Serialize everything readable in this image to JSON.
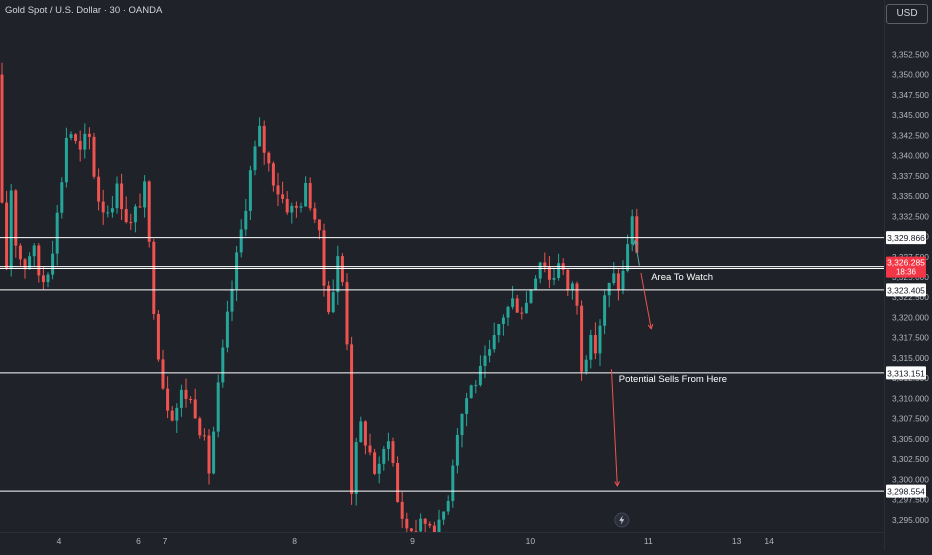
{
  "header": {
    "symbol_title": "Gold Spot / U.S. Dollar · 30 · OANDA",
    "currency_button": "USD"
  },
  "colors": {
    "background": "#1f2229",
    "up": "#26a69a",
    "down": "#ef5350",
    "level_line": "#ffffff",
    "annotation": "#ffffff",
    "arrow_red": "#ef5350",
    "arrow_teal": "#5fa8a0",
    "axis_text": "#b2b5be",
    "grid": "#2a2e39"
  },
  "chart_data": {
    "type": "candlestick",
    "title": "Gold Spot / U.S. Dollar · 30 · OANDA",
    "currency": "USD",
    "ylim": [
      3293.5,
      3356.5
    ],
    "y_ticks": [
      "3,295.000",
      "3,297.500",
      "3,300.000",
      "3,302.500",
      "3,305.000",
      "3,307.500",
      "3,310.000",
      "3,312.500",
      "3,315.000",
      "3,317.500",
      "3,320.000",
      "3,322.500",
      "3,325.000",
      "3,327.500",
      "3,330.000",
      "3,332.500",
      "3,335.000",
      "3,337.500",
      "3,340.000",
      "3,342.500",
      "3,345.000",
      "3,347.500",
      "3,350.000",
      "3,352.500"
    ],
    "x_ticks": [
      {
        "label": "4",
        "slot": 2.0
      },
      {
        "label": "6",
        "slot": 4.7
      },
      {
        "label": "7",
        "slot": 5.6
      },
      {
        "label": "8",
        "slot": 10.0
      },
      {
        "label": "9",
        "slot": 14.0
      },
      {
        "label": "10",
        "slot": 18.0
      },
      {
        "label": "11",
        "slot": 22.0
      },
      {
        "label": "13",
        "slot": 25.0
      },
      {
        "label": "14",
        "slot": 26.1
      }
    ],
    "x_slots": 30,
    "current_price": {
      "label": "3,326.285",
      "countdown": "18:36",
      "value": 3326.285
    },
    "horizontal_levels": [
      {
        "value": 3329.866,
        "label": "3,329.866"
      },
      {
        "value": 3326.057,
        "label": "3,326.057"
      },
      {
        "value": 3323.405,
        "label": "3,323.405"
      },
      {
        "value": 3313.151,
        "label": "3,313.151"
      },
      {
        "value": 3298.554,
        "label": "3,298.554"
      }
    ],
    "annotations": [
      {
        "text": "Area To Watch",
        "slot": 22.1,
        "price": 3324.6
      },
      {
        "text": "Potential Sells From Here",
        "slot": 21.0,
        "price": 3312.0
      }
    ],
    "arrows": [
      {
        "from_slot": 21.75,
        "from_price": 3325.5,
        "to_slot": 22.1,
        "to_price": 3318.6,
        "color": "arrow_red"
      },
      {
        "from_slot": 20.75,
        "from_price": 3313.6,
        "to_slot": 20.95,
        "to_price": 3299.2,
        "color": "arrow_red"
      },
      {
        "from_slot": 21.7,
        "from_price": 3326.4,
        "to_slot": 21.55,
        "to_price": 3329.5,
        "color": "arrow_teal"
      }
    ],
    "path": [
      [
        0.0,
        3350
      ],
      [
        0.15,
        3313
      ],
      [
        0.3,
        3340
      ],
      [
        0.5,
        3330
      ],
      [
        0.8,
        3326
      ],
      [
        1.1,
        3329
      ],
      [
        1.4,
        3324
      ],
      [
        1.7,
        3327
      ],
      [
        2.0,
        3334
      ],
      [
        2.3,
        3344
      ],
      [
        2.7,
        3340
      ],
      [
        3.0,
        3343
      ],
      [
        3.3,
        3335
      ],
      [
        3.6,
        3333
      ],
      [
        4.0,
        3336
      ],
      [
        4.4,
        3331
      ],
      [
        4.9,
        3336
      ],
      [
        5.1,
        3327
      ],
      [
        5.3,
        3318
      ],
      [
        5.6,
        3310
      ],
      [
        5.9,
        3308
      ],
      [
        6.2,
        3311
      ],
      [
        6.6,
        3309
      ],
      [
        6.9,
        3305
      ],
      [
        7.1,
        3301
      ],
      [
        7.4,
        3311
      ],
      [
        7.8,
        3322
      ],
      [
        8.2,
        3331
      ],
      [
        8.5,
        3338
      ],
      [
        8.8,
        3343
      ],
      [
        9.1,
        3339
      ],
      [
        9.4,
        3336
      ],
      [
        9.7,
        3334
      ],
      [
        10.0,
        3333
      ],
      [
        10.4,
        3336
      ],
      [
        10.8,
        3331
      ],
      [
        11.0,
        3324
      ],
      [
        11.2,
        3321
      ],
      [
        11.5,
        3328
      ],
      [
        11.7,
        3322
      ],
      [
        11.8,
        3316
      ],
      [
        11.9,
        3298
      ],
      [
        12.2,
        3307
      ],
      [
        12.5,
        3304
      ],
      [
        12.8,
        3300
      ],
      [
        13.2,
        3306
      ],
      [
        13.5,
        3297
      ],
      [
        13.8,
        3294
      ],
      [
        14.2,
        3294
      ],
      [
        14.5,
        3295
      ],
      [
        14.9,
        3294
      ],
      [
        15.2,
        3298
      ],
      [
        15.5,
        3306
      ],
      [
        15.9,
        3311
      ],
      [
        16.3,
        3313
      ],
      [
        16.7,
        3316
      ],
      [
        17.0,
        3320
      ],
      [
        17.4,
        3322
      ],
      [
        17.8,
        3321
      ],
      [
        18.1,
        3325
      ],
      [
        18.4,
        3328
      ],
      [
        18.7,
        3324
      ],
      [
        19.0,
        3328
      ],
      [
        19.3,
        3322
      ],
      [
        19.5,
        3326
      ],
      [
        19.7,
        3314
      ],
      [
        20.0,
        3317
      ],
      [
        20.2,
        3316
      ],
      [
        20.5,
        3322
      ],
      [
        20.8,
        3325
      ],
      [
        21.0,
        3324
      ],
      [
        21.2,
        3326
      ],
      [
        21.4,
        3333
      ],
      [
        21.55,
        3330
      ],
      [
        21.7,
        3326.3
      ]
    ]
  }
}
